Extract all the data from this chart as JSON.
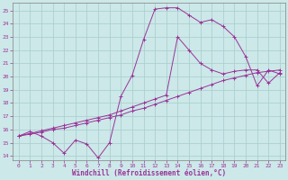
{
  "xlabel": "Windchill (Refroidissement éolien,°C)",
  "bg_color": "#cce8e8",
  "grid_color": "#a8cccc",
  "line_color": "#993399",
  "xlim": [
    -0.5,
    23.5
  ],
  "ylim": [
    13.7,
    25.6
  ],
  "xticks": [
    0,
    1,
    2,
    3,
    4,
    5,
    6,
    7,
    8,
    9,
    10,
    11,
    12,
    13,
    14,
    15,
    16,
    17,
    18,
    19,
    20,
    21,
    22,
    23
  ],
  "yticks": [
    14,
    15,
    16,
    17,
    18,
    19,
    20,
    21,
    22,
    23,
    24,
    25
  ],
  "line1_x": [
    0,
    1,
    2,
    3,
    4,
    5,
    6,
    7,
    8,
    9,
    10,
    11,
    12,
    13,
    14,
    15,
    16,
    17,
    18,
    19,
    20,
    21,
    22,
    23
  ],
  "line1_y": [
    15.5,
    15.85,
    15.5,
    15.0,
    14.2,
    15.2,
    14.9,
    13.85,
    15.0,
    18.5,
    20.1,
    22.8,
    25.1,
    25.2,
    25.2,
    24.65,
    24.1,
    24.3,
    23.8,
    23.0,
    21.5,
    19.3,
    20.5,
    20.2
  ],
  "line2_x": [
    0,
    1,
    2,
    3,
    4,
    5,
    6,
    7,
    8,
    9,
    10,
    11,
    12,
    13,
    14,
    15,
    16,
    17,
    18,
    19,
    20,
    21,
    22,
    23
  ],
  "line2_y": [
    15.5,
    15.7,
    15.9,
    16.1,
    16.3,
    16.5,
    16.7,
    16.9,
    17.1,
    17.4,
    17.7,
    18.0,
    18.3,
    18.6,
    23.0,
    22.0,
    21.0,
    20.5,
    20.2,
    20.4,
    20.5,
    20.5,
    19.5,
    20.3
  ],
  "line3_x": [
    0,
    1,
    2,
    3,
    4,
    5,
    6,
    7,
    8,
    9,
    10,
    11,
    12,
    13,
    14,
    15,
    16,
    17,
    18,
    19,
    20,
    21,
    22,
    23
  ],
  "line3_y": [
    15.5,
    15.65,
    15.8,
    16.0,
    16.1,
    16.3,
    16.5,
    16.7,
    16.9,
    17.1,
    17.4,
    17.6,
    17.9,
    18.2,
    18.5,
    18.8,
    19.1,
    19.4,
    19.7,
    19.9,
    20.1,
    20.3,
    20.4,
    20.5
  ]
}
